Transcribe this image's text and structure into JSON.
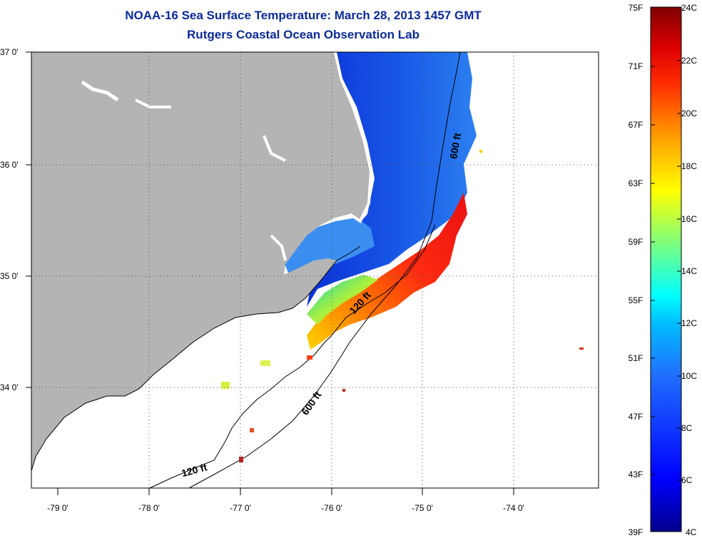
{
  "title": {
    "line1": "NOAA-16 Sea Surface Temperature:  March 28, 2013 1457 GMT",
    "line2": "Rutgers Coastal Ocean Observation Lab"
  },
  "latitude_labels": [
    "37 0'",
    "36 0'",
    "35 0'",
    "34 0'"
  ],
  "longitude_labels": [
    "-79 0'",
    "-78 0'",
    "-77 0'",
    "-76 0'",
    "-75 0'",
    "-74 0'"
  ],
  "isobath_labels": {
    "north_600": "600 ft",
    "mid_120": "120 ft",
    "south_600": "600 ft",
    "south_120": "120 ft"
  },
  "colorbar": {
    "fahrenheit": [
      "75F",
      "71F",
      "67F",
      "63F",
      "59F",
      "55F",
      "51F",
      "47F",
      "43F",
      "39F"
    ],
    "celsius": [
      "24C",
      "22C",
      "20C",
      "18C",
      "16C",
      "14C",
      "12C",
      "10C",
      "8C",
      "6C",
      "4C"
    ],
    "stops": [
      "#00008b",
      "#0000ff",
      "#005aff",
      "#00b0ff",
      "#00ffff",
      "#7dff7d",
      "#ffff00",
      "#ffa000",
      "#ff3000",
      "#e00000",
      "#800000"
    ]
  },
  "colors": {
    "land": "#b4b4b4",
    "title": "#0b2a9a",
    "cold_water": "#1e50e6",
    "sound_water": "#3c8cf0",
    "warm_water": "#ee2a10"
  }
}
